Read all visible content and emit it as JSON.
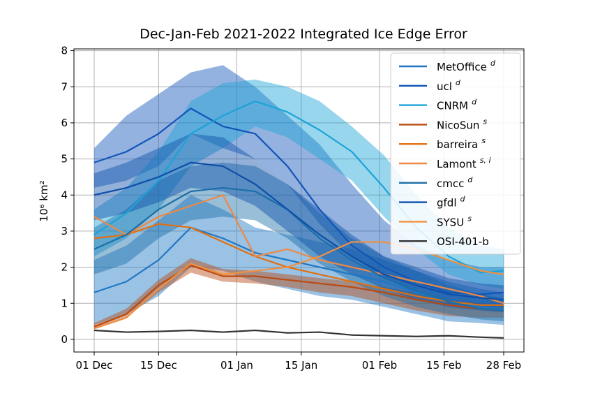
{
  "chart_data": {
    "type": "line",
    "title": "Dec-Jan-Feb 2021-2022 Integrated Ice Edge Error",
    "ylabel": "10⁶ km²",
    "xlabel": "",
    "x_start": "2021-12-01",
    "x_ticks": [
      {
        "date": "2021-12-01",
        "label": "01 Dec"
      },
      {
        "date": "2021-12-15",
        "label": "15 Dec"
      },
      {
        "date": "2022-01-01",
        "label": "01 Jan"
      },
      {
        "date": "2022-01-15",
        "label": "15 Jan"
      },
      {
        "date": "2022-02-01",
        "label": "01 Feb"
      },
      {
        "date": "2022-02-15",
        "label": "15 Feb"
      },
      {
        "date": "2022-02-28",
        "label": "28 Feb"
      }
    ],
    "xlim": [
      "2021-12-01",
      "2022-02-28"
    ],
    "ylim": [
      -0.35,
      8.05
    ],
    "y_ticks": [
      0,
      1,
      2,
      3,
      4,
      5,
      6,
      7,
      8
    ],
    "grid": true,
    "legend_position": "top-right",
    "series": [
      {
        "name": "MetOffice",
        "sup": "d",
        "color": "#1f77c4",
        "x": [
          "2021-12-01",
          "2021-12-08",
          "2021-12-15",
          "2021-12-22",
          "2021-12-29",
          "2022-01-05",
          "2022-01-12",
          "2022-01-19",
          "2022-01-26",
          "2022-02-02",
          "2022-02-09",
          "2022-02-16",
          "2022-02-23",
          "2022-02-28"
        ],
        "y": [
          1.3,
          1.6,
          2.2,
          3.1,
          2.8,
          2.4,
          2.2,
          2.0,
          1.8,
          1.6,
          1.3,
          1.05,
          0.9,
          0.85
        ],
        "band": [
          [
            0.4,
            2.2
          ],
          [
            0.7,
            2.6
          ],
          [
            1.2,
            3.3
          ],
          [
            2.0,
            4.0
          ],
          [
            1.9,
            3.6
          ],
          [
            1.6,
            3.1
          ],
          [
            1.4,
            2.9
          ],
          [
            1.2,
            2.7
          ],
          [
            1.1,
            2.5
          ],
          [
            0.9,
            2.2
          ],
          [
            0.7,
            1.9
          ],
          [
            0.5,
            1.6
          ],
          [
            0.45,
            1.4
          ],
          [
            0.4,
            1.3
          ]
        ]
      },
      {
        "name": "ucl",
        "sup": "d",
        "color": "#1155b8",
        "x": [
          "2021-12-01",
          "2021-12-08",
          "2021-12-15",
          "2021-12-22",
          "2021-12-29",
          "2022-01-05",
          "2022-01-12",
          "2022-01-19",
          "2022-01-26",
          "2022-02-02",
          "2022-02-09",
          "2022-02-16",
          "2022-02-23",
          "2022-02-28"
        ],
        "y": [
          4.9,
          5.2,
          5.7,
          6.4,
          5.9,
          5.7,
          4.8,
          3.6,
          2.6,
          2.0,
          1.6,
          1.3,
          1.25,
          1.3
        ],
        "band": [
          [
            4.2,
            5.3
          ],
          [
            4.4,
            6.2
          ],
          [
            4.8,
            6.8
          ],
          [
            5.7,
            7.4
          ],
          [
            5.3,
            7.6
          ],
          [
            5.0,
            7.0
          ],
          [
            4.3,
            6.2
          ],
          [
            3.2,
            5.4
          ],
          [
            2.3,
            4.3
          ],
          [
            1.7,
            3.3
          ],
          [
            1.3,
            2.6
          ],
          [
            1.0,
            2.2
          ],
          [
            0.9,
            2.0
          ],
          [
            0.9,
            2.0
          ]
        ]
      },
      {
        "name": "CNRM",
        "sup": "d",
        "color": "#1ba3d8",
        "x": [
          "2021-12-01",
          "2021-12-08",
          "2021-12-15",
          "2021-12-22",
          "2021-12-29",
          "2022-01-05",
          "2022-01-12",
          "2022-01-19",
          "2022-01-26",
          "2022-02-02",
          "2022-02-09",
          "2022-02-16",
          "2022-02-23",
          "2022-02-28"
        ],
        "y": [
          2.9,
          3.5,
          4.4,
          5.7,
          6.2,
          6.6,
          6.3,
          5.8,
          5.2,
          4.2,
          3.1,
          2.3,
          1.85,
          1.9
        ],
        "band": [
          [
            2.3,
            3.6
          ],
          [
            2.8,
            4.2
          ],
          [
            3.6,
            5.2
          ],
          [
            4.8,
            6.6
          ],
          [
            5.3,
            7.1
          ],
          [
            5.9,
            7.2
          ],
          [
            5.6,
            7.0
          ],
          [
            5.0,
            6.6
          ],
          [
            4.4,
            5.9
          ],
          [
            3.4,
            5.1
          ],
          [
            2.5,
            4.0
          ],
          [
            1.8,
            3.1
          ],
          [
            1.5,
            2.6
          ],
          [
            1.4,
            2.5
          ]
        ]
      },
      {
        "name": "NicoSun",
        "sup": "s",
        "color": "#b84a12",
        "x": [
          "2021-12-01",
          "2021-12-08",
          "2021-12-15",
          "2021-12-22",
          "2021-12-29",
          "2022-01-05",
          "2022-01-12",
          "2022-01-19",
          "2022-01-26",
          "2022-02-02",
          "2022-02-09",
          "2022-02-16",
          "2022-02-23",
          "2022-02-28"
        ],
        "y": [
          0.35,
          0.7,
          1.5,
          2.05,
          1.75,
          1.75,
          1.65,
          1.55,
          1.45,
          1.3,
          1.1,
          0.95,
          0.85,
          0.8
        ],
        "band": [
          [
            0.3,
            0.45
          ],
          [
            0.6,
            0.85
          ],
          [
            1.3,
            1.65
          ],
          [
            1.85,
            2.25
          ],
          [
            1.6,
            1.95
          ],
          [
            1.55,
            1.9
          ],
          [
            1.45,
            1.8
          ],
          [
            1.3,
            1.7
          ],
          [
            1.2,
            1.6
          ],
          [
            1.0,
            1.45
          ],
          [
            0.8,
            1.3
          ],
          [
            0.65,
            1.1
          ],
          [
            0.6,
            1.0
          ],
          [
            0.6,
            0.95
          ]
        ]
      },
      {
        "name": "barreira",
        "sup": "s",
        "color": "#e07010",
        "x": [
          "2021-12-01",
          "2021-12-08",
          "2021-12-15",
          "2021-12-22",
          "2021-12-29",
          "2022-01-05",
          "2022-01-12",
          "2022-01-19",
          "2022-01-26",
          "2022-02-02",
          "2022-02-09",
          "2022-02-16",
          "2022-02-23",
          "2022-02-28"
        ],
        "y": [
          2.8,
          2.9,
          3.2,
          3.1,
          2.7,
          2.3,
          2.0,
          1.8,
          1.6,
          1.4,
          1.2,
          1.05,
          0.95,
          0.95
        ]
      },
      {
        "name": "Lamont",
        "sup": "s, i",
        "color": "#ee8844",
        "x": [
          "2021-12-01",
          "2021-12-08",
          "2021-12-15",
          "2021-12-22",
          "2021-12-29",
          "2022-01-05",
          "2022-01-12",
          "2022-01-19",
          "2022-01-26",
          "2022-02-02",
          "2022-02-09",
          "2022-02-16",
          "2022-02-23",
          "2022-02-28"
        ],
        "y": [
          3.4,
          2.9,
          3.4,
          3.7,
          4.0,
          2.3,
          2.5,
          2.2,
          2.0,
          1.8,
          1.6,
          1.4,
          1.2,
          1.0
        ]
      },
      {
        "name": "cmcc",
        "sup": "d",
        "color": "#1a6fa8",
        "x": [
          "2021-12-01",
          "2021-12-08",
          "2021-12-15",
          "2021-12-22",
          "2021-12-29",
          "2022-01-05",
          "2022-01-12",
          "2022-01-19",
          "2022-01-26",
          "2022-02-02",
          "2022-02-09",
          "2022-02-16",
          "2022-02-23",
          "2022-02-28"
        ],
        "y": [
          2.5,
          2.9,
          3.6,
          4.1,
          4.2,
          4.1,
          3.6,
          2.8,
          2.2,
          1.7,
          1.35,
          1.05,
          0.85,
          0.8
        ],
        "band": [
          [
            1.8,
            3.1
          ],
          [
            2.1,
            3.6
          ],
          [
            2.8,
            4.4
          ],
          [
            3.3,
            4.8
          ],
          [
            3.4,
            4.9
          ],
          [
            3.3,
            4.8
          ],
          [
            2.8,
            4.3
          ],
          [
            2.1,
            3.5
          ],
          [
            1.6,
            2.8
          ],
          [
            1.2,
            2.3
          ],
          [
            0.9,
            1.9
          ],
          [
            0.7,
            1.5
          ],
          [
            0.55,
            1.25
          ],
          [
            0.5,
            1.15
          ]
        ]
      },
      {
        "name": "gfdl",
        "sup": "d",
        "color": "#0d4fa8",
        "x": [
          "2021-12-01",
          "2021-12-08",
          "2021-12-15",
          "2021-12-22",
          "2021-12-29",
          "2022-01-05",
          "2022-01-12",
          "2022-01-19",
          "2022-01-26",
          "2022-02-02",
          "2022-02-09",
          "2022-02-16",
          "2022-02-23",
          "2022-02-28"
        ],
        "y": [
          4.0,
          4.2,
          4.5,
          4.9,
          4.8,
          4.3,
          3.6,
          2.9,
          2.3,
          1.8,
          1.5,
          1.25,
          1.15,
          1.1
        ],
        "band": [
          [
            3.3,
            4.6
          ],
          [
            3.5,
            4.9
          ],
          [
            3.8,
            5.3
          ],
          [
            4.2,
            5.7
          ],
          [
            4.1,
            5.6
          ],
          [
            3.7,
            5.0
          ],
          [
            3.0,
            4.3
          ],
          [
            2.3,
            3.6
          ],
          [
            1.8,
            2.9
          ],
          [
            1.4,
            2.3
          ],
          [
            1.1,
            2.0
          ],
          [
            0.9,
            1.7
          ],
          [
            0.8,
            1.55
          ],
          [
            0.75,
            1.5
          ]
        ]
      },
      {
        "name": "SYSU",
        "sup": "s",
        "color": "#f09040",
        "x": [
          "2021-12-01",
          "2021-12-08",
          "2021-12-15",
          "2021-12-22",
          "2021-12-29",
          "2022-01-05",
          "2022-01-12",
          "2022-01-19",
          "2022-01-26",
          "2022-02-02",
          "2022-02-09",
          "2022-02-16",
          "2022-02-23",
          "2022-02-28"
        ],
        "y": [
          0.3,
          0.6,
          1.4,
          2.1,
          1.8,
          1.9,
          2.0,
          2.3,
          2.7,
          2.7,
          2.5,
          2.2,
          1.9,
          1.8
        ]
      },
      {
        "name": "OSI-401-b",
        "sup": "",
        "color": "#333333",
        "x": [
          "2021-12-01",
          "2021-12-08",
          "2021-12-15",
          "2021-12-22",
          "2021-12-29",
          "2022-01-05",
          "2022-01-12",
          "2022-01-19",
          "2022-01-26",
          "2022-02-02",
          "2022-02-09",
          "2022-02-16",
          "2022-02-23",
          "2022-02-28"
        ],
        "y": [
          0.25,
          0.2,
          0.22,
          0.25,
          0.2,
          0.25,
          0.18,
          0.2,
          0.12,
          0.1,
          0.08,
          0.1,
          0.06,
          0.04
        ]
      }
    ]
  }
}
